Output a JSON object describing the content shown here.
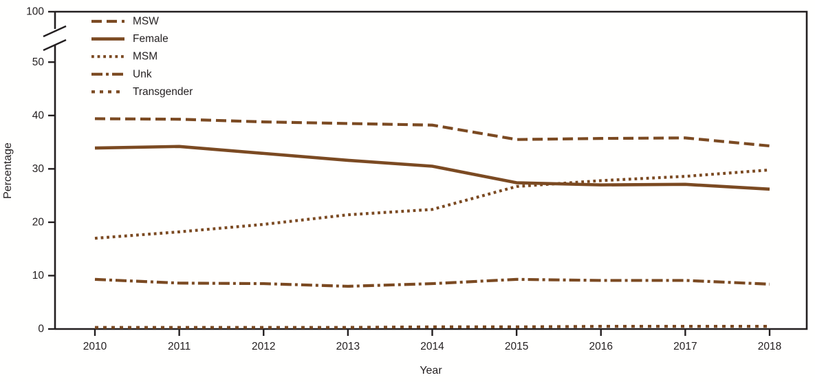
{
  "theme": {
    "line_color": "#7b4a22",
    "axis_color": "#231f20",
    "text_color": "#231f20",
    "background": "#fffffe"
  },
  "chart_data": {
    "type": "line",
    "title": "",
    "xlabel": "Year",
    "ylabel": "Percentage",
    "x": [
      2010,
      2011,
      2012,
      2013,
      2014,
      2015,
      2016,
      2017,
      2018
    ],
    "x_tick_labels": [
      "2010",
      "2011",
      "2012",
      "2013",
      "2014",
      "2015",
      "2016",
      "2017",
      "2018"
    ],
    "y_ticks": [
      0,
      10,
      20,
      30,
      40,
      50,
      100
    ],
    "y_axis_break_between": [
      50,
      100
    ],
    "ylim": [
      0,
      100
    ],
    "grid": false,
    "legend_position": "top-left",
    "series": [
      {
        "name": "MSW",
        "style": "dashed",
        "values": [
          39.4,
          39.3,
          38.8,
          38.5,
          38.2,
          35.5,
          35.7,
          35.8,
          34.3
        ]
      },
      {
        "name": "Female",
        "style": "solid",
        "values": [
          33.9,
          34.2,
          32.9,
          31.6,
          30.5,
          27.4,
          27.0,
          27.1,
          26.2
        ]
      },
      {
        "name": "MSM",
        "style": "dotted",
        "values": [
          17.0,
          18.2,
          19.6,
          21.4,
          22.4,
          26.7,
          27.8,
          28.6,
          29.8
        ]
      },
      {
        "name": "Unk",
        "style": "dash-dot",
        "values": [
          9.3,
          8.6,
          8.5,
          8.0,
          8.5,
          9.3,
          9.1,
          9.1,
          8.4
        ]
      },
      {
        "name": "Transgender",
        "style": "short-dash",
        "values": [
          0.3,
          0.3,
          0.3,
          0.3,
          0.4,
          0.4,
          0.5,
          0.5,
          0.5
        ]
      }
    ]
  }
}
